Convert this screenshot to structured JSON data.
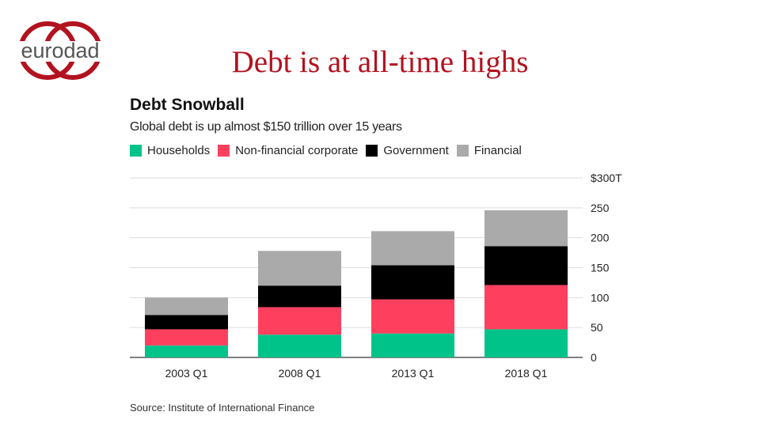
{
  "slide": {
    "title": "Debt is at all-time highs",
    "logo_text": "eurodad",
    "logo_color": "#b3121f"
  },
  "chart_data": {
    "type": "bar",
    "stacked": true,
    "title": "Debt Snowball",
    "subtitle": "Global debt is up almost $150 trillion over 15 years",
    "categories": [
      "2003 Q1",
      "2008 Q1",
      "2013 Q1",
      "2018 Q1"
    ],
    "series": [
      {
        "name": "Households",
        "color": "#00c389",
        "values": [
          20,
          38,
          40,
          47
        ]
      },
      {
        "name": "Non-financial corporate",
        "color": "#ff3f5e",
        "values": [
          27,
          46,
          57,
          74
        ]
      },
      {
        "name": "Government",
        "color": "#000000",
        "values": [
          24,
          36,
          57,
          65
        ]
      },
      {
        "name": "Financial",
        "color": "#aaaaaa",
        "values": [
          29,
          58,
          57,
          60
        ]
      }
    ],
    "y_ticks": [
      "$300T",
      "250",
      "200",
      "150",
      "100",
      "50",
      "0"
    ],
    "y_tick_values": [
      300,
      250,
      200,
      150,
      100,
      50,
      0
    ],
    "ylim": [
      0,
      300
    ],
    "y_axis_position": "right",
    "grid": true,
    "legend_position": "top-left",
    "source": "Source: Institute of International Finance"
  }
}
